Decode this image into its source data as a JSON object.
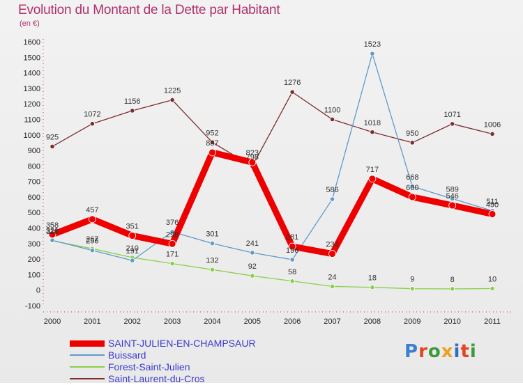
{
  "chart_data": {
    "type": "line",
    "title": "Evolution du Montant de la Dette par Habitant",
    "subtitle": "(en €)",
    "categories": [
      "2000",
      "2001",
      "2002",
      "2003",
      "2004",
      "2005",
      "2006",
      "2007",
      "2008",
      "2009",
      "2010",
      "2011"
    ],
    "ylim": [
      -100,
      1600
    ],
    "yticks": [
      -100,
      0,
      100,
      200,
      300,
      400,
      500,
      600,
      700,
      800,
      900,
      1000,
      1100,
      1200,
      1300,
      1400,
      1500,
      1600
    ],
    "grid": false,
    "legend_position": "bottom-left",
    "series": [
      {
        "name": "SAINT-JULIEN-EN-CHAMPSAUR",
        "color": "#ee0000",
        "values": [
          358,
          457,
          351,
          298,
          887,
          823,
          281,
          234,
          717,
          600,
          546,
          490
        ]
      },
      {
        "name": "Buissard",
        "color": "#5e9acb",
        "values": [
          321,
          256,
          191,
          376,
          301,
          241,
          196,
          586,
          1523,
          668,
          589,
          511
        ]
      },
      {
        "name": "Forest-Saint-Julien",
        "color": "#88d048",
        "values": [
          318,
          267,
          210,
          171,
          132,
          92,
          58,
          24,
          18,
          9,
          8,
          10
        ]
      },
      {
        "name": "Saint-Laurent-du-Cros",
        "color": "#7c2d2d",
        "values": [
          925,
          1072,
          1156,
          1225,
          952,
          798,
          1276,
          1100,
          1018,
          950,
          1071,
          1006
        ]
      }
    ]
  },
  "logo": {
    "text": "Proxiti",
    "icon": "proxiti-logo"
  }
}
